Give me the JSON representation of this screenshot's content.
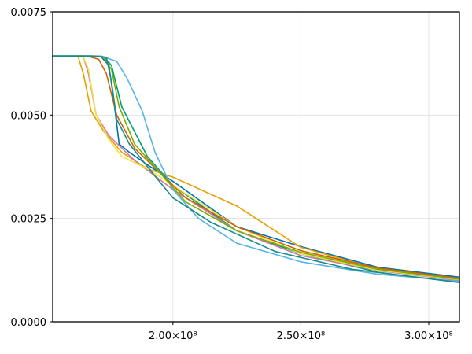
{
  "chart_data": {
    "type": "line",
    "title": "",
    "xlabel": "",
    "ylabel": "",
    "xlim": [
      153000000,
      312000000
    ],
    "ylim": [
      0,
      0.0075
    ],
    "grid": true,
    "legend": "none",
    "x_ticks": [
      {
        "value": 200000000,
        "label": "2.00×10⁸"
      },
      {
        "value": 250000000,
        "label": "2.50×10⁸"
      },
      {
        "value": 300000000,
        "label": "3.00×10⁸"
      }
    ],
    "y_ticks": [
      {
        "value": 0,
        "label": "0.0000"
      },
      {
        "value": 0.0025,
        "label": "0.0025"
      },
      {
        "value": 0.005,
        "label": "0.0050"
      },
      {
        "value": 0.0075,
        "label": "0.0075"
      }
    ],
    "series": [
      {
        "color": "#0072b2",
        "points": [
          [
            153000000,
            0.00643
          ],
          [
            165000000,
            0.00643
          ],
          [
            172000000,
            0.00641
          ],
          [
            175000000,
            0.0062
          ],
          [
            177000000,
            0.0053
          ],
          [
            179000000,
            0.0043
          ],
          [
            183000000,
            0.0041
          ],
          [
            190000000,
            0.0038
          ],
          [
            200000000,
            0.0034
          ],
          [
            225000000,
            0.0023
          ],
          [
            250000000,
            0.00182
          ],
          [
            280000000,
            0.00132
          ],
          [
            312000000,
            0.00108
          ]
        ]
      },
      {
        "color": "#e69f00",
        "points": [
          [
            153000000,
            0.00643
          ],
          [
            163000000,
            0.00641
          ],
          [
            165000000,
            0.006
          ],
          [
            168000000,
            0.0051
          ],
          [
            173000000,
            0.0046
          ],
          [
            180000000,
            0.0041
          ],
          [
            190000000,
            0.0037
          ],
          [
            200000000,
            0.0035
          ],
          [
            225000000,
            0.0028
          ],
          [
            250000000,
            0.0018
          ],
          [
            280000000,
            0.00128
          ],
          [
            312000000,
            0.00103
          ]
        ]
      },
      {
        "color": "#009e73",
        "points": [
          [
            153000000,
            0.00643
          ],
          [
            168000000,
            0.00643
          ],
          [
            173000000,
            0.00641
          ],
          [
            176000000,
            0.0062
          ],
          [
            180000000,
            0.0052
          ],
          [
            190000000,
            0.004
          ],
          [
            200000000,
            0.0033
          ],
          [
            225000000,
            0.0022
          ],
          [
            250000000,
            0.00165
          ],
          [
            280000000,
            0.0012
          ],
          [
            312000000,
            0.00095
          ]
        ]
      },
      {
        "color": "#cc79a7",
        "points": [
          [
            153000000,
            0.00643
          ],
          [
            165000000,
            0.00641
          ],
          [
            167000000,
            0.006
          ],
          [
            170000000,
            0.005
          ],
          [
            175000000,
            0.0045
          ],
          [
            185000000,
            0.0039
          ],
          [
            200000000,
            0.0032
          ],
          [
            225000000,
            0.0022
          ],
          [
            250000000,
            0.0016
          ],
          [
            280000000,
            0.00124
          ],
          [
            312000000,
            0.001
          ]
        ]
      },
      {
        "color": "#56b4e9",
        "points": [
          [
            153000000,
            0.00643
          ],
          [
            172000000,
            0.00643
          ],
          [
            178000000,
            0.0063
          ],
          [
            182000000,
            0.0059
          ],
          [
            188000000,
            0.0051
          ],
          [
            193000000,
            0.0041
          ],
          [
            200000000,
            0.0032
          ],
          [
            210000000,
            0.0025
          ],
          [
            225000000,
            0.0019
          ],
          [
            250000000,
            0.00145
          ],
          [
            280000000,
            0.00115
          ],
          [
            312000000,
            0.00098
          ]
        ]
      },
      {
        "color": "#f0e442",
        "points": [
          [
            153000000,
            0.00643
          ],
          [
            165000000,
            0.00641
          ],
          [
            167000000,
            0.0061
          ],
          [
            170000000,
            0.005
          ],
          [
            175000000,
            0.0044
          ],
          [
            180000000,
            0.004
          ],
          [
            190000000,
            0.0037
          ],
          [
            200000000,
            0.0033
          ],
          [
            225000000,
            0.0023
          ],
          [
            250000000,
            0.00165
          ],
          [
            280000000,
            0.00125
          ],
          [
            312000000,
            0.00102
          ]
        ]
      },
      {
        "color": "#d55e00",
        "points": [
          [
            153000000,
            0.00643
          ],
          [
            167000000,
            0.00642
          ],
          [
            171000000,
            0.00635
          ],
          [
            174000000,
            0.006
          ],
          [
            178000000,
            0.005
          ],
          [
            185000000,
            0.0042
          ],
          [
            195000000,
            0.0036
          ],
          [
            205000000,
            0.003
          ],
          [
            225000000,
            0.0023
          ],
          [
            250000000,
            0.00172
          ],
          [
            280000000,
            0.0013
          ],
          [
            312000000,
            0.00105
          ]
        ]
      },
      {
        "color": "#7cae00",
        "points": [
          [
            153000000,
            0.00643
          ],
          [
            168000000,
            0.00643
          ],
          [
            173000000,
            0.0064
          ],
          [
            176000000,
            0.0061
          ],
          [
            179000000,
            0.0052
          ],
          [
            185000000,
            0.0043
          ],
          [
            195000000,
            0.0036
          ],
          [
            205000000,
            0.0029
          ],
          [
            225000000,
            0.0022
          ],
          [
            250000000,
            0.00168
          ],
          [
            280000000,
            0.00127
          ],
          [
            312000000,
            0.00103
          ]
        ]
      },
      {
        "color": "#1a8a8a",
        "points": [
          [
            153000000,
            0.00643
          ],
          [
            169000000,
            0.00643
          ],
          [
            174000000,
            0.0064
          ],
          [
            176000000,
            0.0058
          ],
          [
            178000000,
            0.0049
          ],
          [
            183000000,
            0.0043
          ],
          [
            192000000,
            0.0036
          ],
          [
            200000000,
            0.003
          ],
          [
            215000000,
            0.0024
          ],
          [
            240000000,
            0.0017
          ],
          [
            270000000,
            0.00127
          ],
          [
            312000000,
            0.00095
          ]
        ]
      }
    ]
  }
}
